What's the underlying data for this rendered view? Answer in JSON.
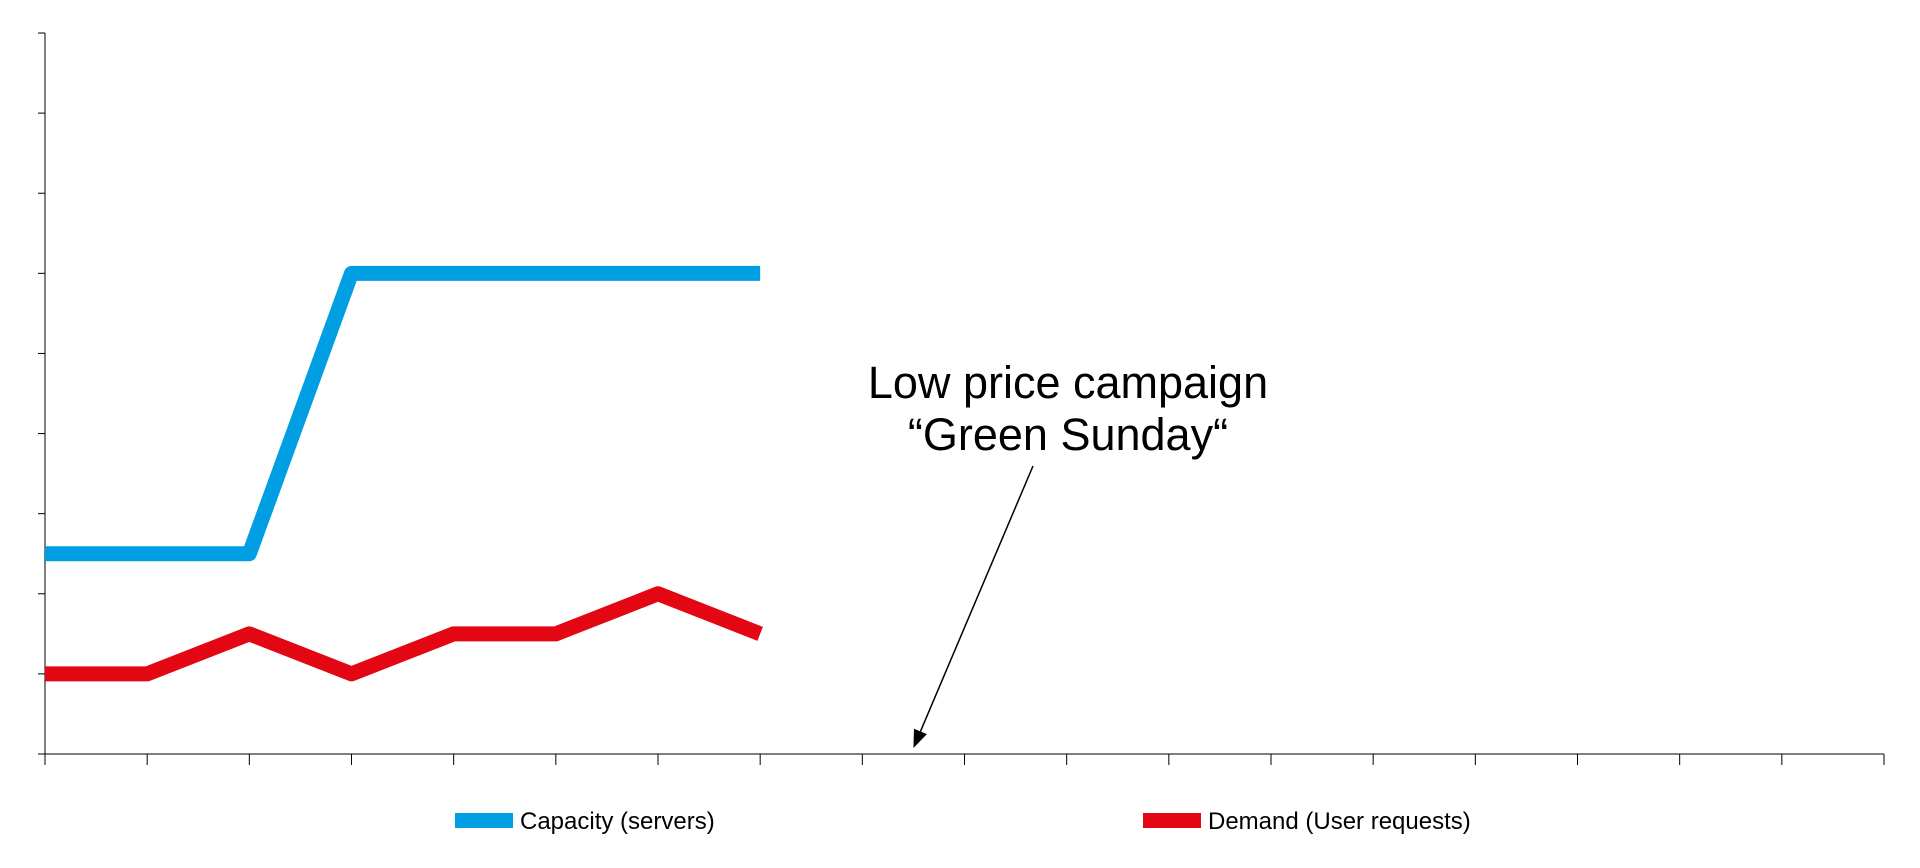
{
  "chart_data": {
    "type": "line",
    "title": "",
    "xlabel": "",
    "ylabel": "",
    "x": [
      0,
      1,
      2,
      3,
      4,
      5,
      6,
      7
    ],
    "xlim": [
      0,
      18
    ],
    "ylim": [
      0,
      9
    ],
    "x_ticks": 18,
    "y_ticks": 9,
    "series": [
      {
        "name": "Capacity (servers)",
        "color": "#009FE3",
        "values": [
          2.5,
          2.5,
          2.5,
          6,
          6,
          6,
          6,
          6
        ]
      },
      {
        "name": "Demand (User requests)",
        "color": "#E30613",
        "values": [
          1,
          1,
          1.5,
          1,
          1.5,
          1.5,
          2,
          1.5
        ]
      }
    ],
    "annotation": {
      "lines": [
        "Low price campaign",
        "“Green Sunday“"
      ],
      "target_x": 8.5,
      "target_y": 0
    },
    "legend": "bottom",
    "grid": false
  }
}
